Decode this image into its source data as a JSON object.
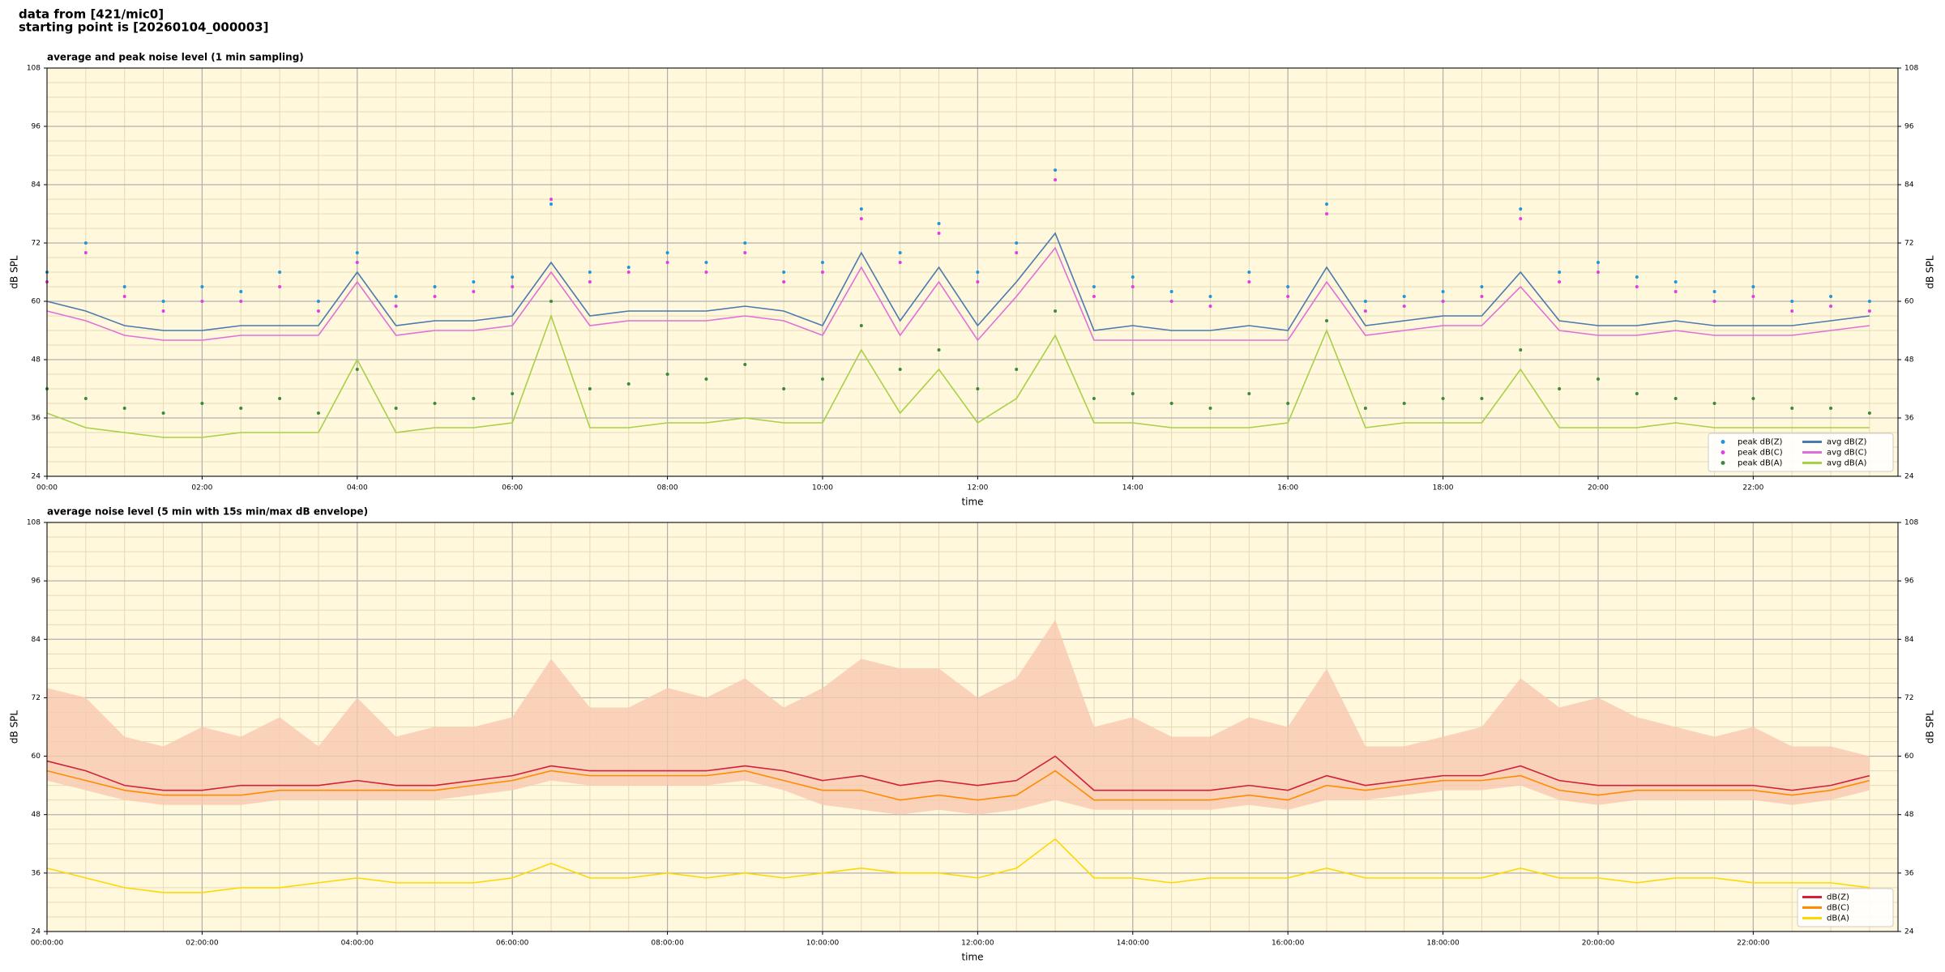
{
  "header": [
    "data from [421/mic0]",
    "starting point is [20260104_000003]"
  ],
  "chart_data": [
    {
      "type": "line",
      "title": "average and peak noise level (1 min sampling)",
      "xlabel": "time",
      "ylabel": "dB SPL",
      "background": "#fff8dc",
      "grid": true,
      "minor_grid": true,
      "legend": "lower right",
      "legend_columns": 2,
      "xlim": [
        0,
        1432
      ],
      "ylim": [
        24,
        108
      ],
      "yticks": [
        24,
        36,
        48,
        60,
        72,
        84,
        96,
        108
      ],
      "xticks": [
        {
          "value": 0,
          "label": "00:00"
        },
        {
          "value": 120,
          "label": "02:00"
        },
        {
          "value": 240,
          "label": "04:00"
        },
        {
          "value": 360,
          "label": "06:00"
        },
        {
          "value": 480,
          "label": "08:00"
        },
        {
          "value": 600,
          "label": "10:00"
        },
        {
          "value": 720,
          "label": "12:00"
        },
        {
          "value": 840,
          "label": "14:00"
        },
        {
          "value": 960,
          "label": "16:00"
        },
        {
          "value": 1080,
          "label": "18:00"
        },
        {
          "value": 1200,
          "label": "20:00"
        },
        {
          "value": 1320,
          "label": "22:00"
        }
      ],
      "x": [
        0,
        30,
        60,
        90,
        120,
        150,
        180,
        210,
        240,
        270,
        300,
        330,
        360,
        390,
        420,
        450,
        480,
        510,
        540,
        570,
        600,
        630,
        660,
        690,
        720,
        750,
        780,
        810,
        840,
        870,
        900,
        930,
        960,
        990,
        1020,
        1050,
        1080,
        1110,
        1140,
        1170,
        1200,
        1230,
        1260,
        1290,
        1320,
        1350,
        1380,
        1410
      ],
      "series": [
        {
          "name": "peak dB(Z)",
          "type": "scatter",
          "color": "#2196d8",
          "values": [
            66,
            72,
            63,
            60,
            63,
            62,
            66,
            60,
            70,
            61,
            63,
            64,
            65,
            80,
            66,
            67,
            70,
            68,
            72,
            66,
            68,
            79,
            70,
            76,
            66,
            72,
            87,
            63,
            65,
            62,
            61,
            66,
            63,
            80,
            60,
            61,
            62,
            63,
            79,
            66,
            68,
            65,
            64,
            62,
            63,
            60,
            61,
            60
          ]
        },
        {
          "name": "peak dB(C)",
          "type": "scatter",
          "color": "#e040e0",
          "values": [
            64,
            70,
            61,
            58,
            60,
            60,
            63,
            58,
            68,
            59,
            61,
            62,
            63,
            81,
            64,
            66,
            68,
            66,
            70,
            64,
            66,
            77,
            68,
            74,
            64,
            70,
            85,
            61,
            63,
            60,
            59,
            64,
            61,
            78,
            58,
            59,
            60,
            61,
            77,
            64,
            66,
            63,
            62,
            60,
            61,
            58,
            59,
            58
          ]
        },
        {
          "name": "peak dB(A)",
          "type": "scatter",
          "color": "#3a8a3a",
          "values": [
            42,
            40,
            38,
            37,
            39,
            38,
            40,
            37,
            46,
            38,
            39,
            40,
            41,
            60,
            42,
            43,
            45,
            44,
            47,
            42,
            44,
            55,
            46,
            50,
            42,
            46,
            58,
            40,
            41,
            39,
            38,
            41,
            39,
            56,
            38,
            39,
            40,
            40,
            50,
            42,
            44,
            41,
            40,
            39,
            40,
            38,
            38,
            37
          ]
        },
        {
          "name": "avg dB(Z)",
          "type": "line",
          "color": "#4a7ab0",
          "values": [
            60,
            58,
            55,
            54,
            54,
            55,
            55,
            55,
            66,
            55,
            56,
            56,
            57,
            68,
            57,
            58,
            58,
            58,
            59,
            58,
            55,
            70,
            56,
            67,
            55,
            64,
            74,
            54,
            55,
            54,
            54,
            55,
            54,
            67,
            55,
            56,
            57,
            57,
            66,
            56,
            55,
            55,
            56,
            55,
            55,
            55,
            56,
            57
          ]
        },
        {
          "name": "avg dB(C)",
          "type": "line",
          "color": "#e070d8",
          "values": [
            58,
            56,
            53,
            52,
            52,
            53,
            53,
            53,
            64,
            53,
            54,
            54,
            55,
            66,
            55,
            56,
            56,
            56,
            57,
            56,
            53,
            67,
            53,
            64,
            52,
            61,
            71,
            52,
            52,
            52,
            52,
            52,
            52,
            64,
            53,
            54,
            55,
            55,
            63,
            54,
            53,
            53,
            54,
            53,
            53,
            53,
            54,
            55
          ]
        },
        {
          "name": "avg dB(A)",
          "type": "line",
          "color": "#a8d048",
          "values": [
            37,
            34,
            33,
            32,
            32,
            33,
            33,
            33,
            48,
            33,
            34,
            34,
            35,
            57,
            34,
            34,
            35,
            35,
            36,
            35,
            35,
            50,
            37,
            46,
            35,
            40,
            53,
            35,
            35,
            34,
            34,
            34,
            35,
            54,
            34,
            35,
            35,
            35,
            46,
            34,
            34,
            34,
            35,
            34,
            34,
            34,
            34,
            34
          ]
        }
      ]
    },
    {
      "type": "line",
      "title": "average noise level (5 min with 15s min/max dB envelope)",
      "xlabel": "time",
      "ylabel": "dB SPL",
      "background": "#fff8dc",
      "grid": true,
      "minor_grid": true,
      "legend": "lower right",
      "legend_columns": 1,
      "xlim": [
        0,
        1432
      ],
      "ylim": [
        24,
        108
      ],
      "yticks": [
        24,
        36,
        48,
        60,
        72,
        84,
        96,
        108
      ],
      "xticks": [
        {
          "value": 0,
          "label": "00:00:00"
        },
        {
          "value": 120,
          "label": "02:00:00"
        },
        {
          "value": 240,
          "label": "04:00:00"
        },
        {
          "value": 360,
          "label": "06:00:00"
        },
        {
          "value": 480,
          "label": "08:00:00"
        },
        {
          "value": 600,
          "label": "10:00:00"
        },
        {
          "value": 720,
          "label": "12:00:00"
        },
        {
          "value": 840,
          "label": "14:00:00"
        },
        {
          "value": 960,
          "label": "16:00:00"
        },
        {
          "value": 1080,
          "label": "18:00:00"
        },
        {
          "value": 1200,
          "label": "20:00:00"
        },
        {
          "value": 1320,
          "label": "22:00:00"
        }
      ],
      "x": [
        0,
        30,
        60,
        90,
        120,
        150,
        180,
        210,
        240,
        270,
        300,
        330,
        360,
        390,
        420,
        450,
        480,
        510,
        540,
        570,
        600,
        630,
        660,
        690,
        720,
        750,
        780,
        810,
        840,
        870,
        900,
        930,
        960,
        990,
        1020,
        1050,
        1080,
        1110,
        1140,
        1170,
        1200,
        1230,
        1260,
        1290,
        1320,
        1350,
        1380,
        1410
      ],
      "envelope": {
        "color": "#f8c8b0",
        "low": [
          55,
          53,
          51,
          50,
          50,
          50,
          51,
          51,
          51,
          51,
          51,
          52,
          53,
          55,
          54,
          54,
          54,
          54,
          55,
          53,
          50,
          49,
          48,
          49,
          48,
          49,
          51,
          49,
          49,
          49,
          49,
          50,
          49,
          51,
          51,
          52,
          53,
          53,
          54,
          51,
          50,
          51,
          51,
          51,
          51,
          50,
          51,
          53
        ],
        "high": [
          74,
          72,
          64,
          62,
          66,
          64,
          68,
          62,
          72,
          64,
          66,
          66,
          68,
          80,
          70,
          70,
          74,
          72,
          76,
          70,
          74,
          80,
          78,
          78,
          72,
          76,
          88,
          66,
          68,
          64,
          64,
          68,
          66,
          78,
          62,
          62,
          64,
          66,
          76,
          70,
          72,
          68,
          66,
          64,
          66,
          62,
          62,
          60
        ]
      },
      "series": [
        {
          "name": "dB(Z)",
          "type": "line",
          "color": "#d0203a",
          "values": [
            59,
            57,
            54,
            53,
            53,
            54,
            54,
            54,
            55,
            54,
            54,
            55,
            56,
            58,
            57,
            57,
            57,
            57,
            58,
            57,
            55,
            56,
            54,
            55,
            54,
            55,
            60,
            53,
            53,
            53,
            53,
            54,
            53,
            56,
            54,
            55,
            56,
            56,
            58,
            55,
            54,
            54,
            54,
            54,
            54,
            53,
            54,
            56
          ]
        },
        {
          "name": "dB(C)",
          "type": "line",
          "color": "#ff8c00",
          "values": [
            57,
            55,
            53,
            52,
            52,
            52,
            53,
            53,
            53,
            53,
            53,
            54,
            55,
            57,
            56,
            56,
            56,
            56,
            57,
            55,
            53,
            53,
            51,
            52,
            51,
            52,
            57,
            51,
            51,
            51,
            51,
            52,
            51,
            54,
            53,
            54,
            55,
            55,
            56,
            53,
            52,
            53,
            53,
            53,
            53,
            52,
            53,
            55
          ]
        },
        {
          "name": "dB(A)",
          "type": "line",
          "color": "#ffd700",
          "values": [
            37,
            35,
            33,
            32,
            32,
            33,
            33,
            34,
            35,
            34,
            34,
            34,
            35,
            38,
            35,
            35,
            36,
            35,
            36,
            35,
            36,
            37,
            36,
            36,
            35,
            37,
            43,
            35,
            35,
            34,
            35,
            35,
            35,
            37,
            35,
            35,
            35,
            35,
            37,
            35,
            35,
            34,
            35,
            35,
            34,
            34,
            34,
            33
          ]
        }
      ]
    }
  ]
}
